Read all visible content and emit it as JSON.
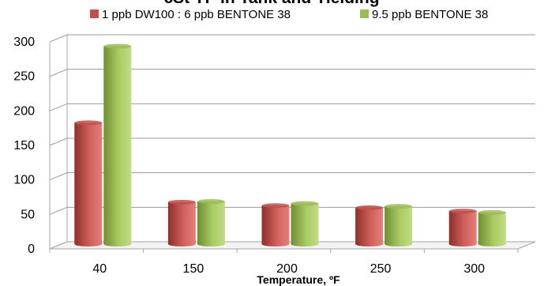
{
  "chart_data": {
    "type": "bar",
    "title": "cSt YP in Tank and Yielding",
    "xlabel": "Temperature, ºF",
    "ylabel": "",
    "categories": [
      "40",
      "150",
      "200",
      "250",
      "300"
    ],
    "series": [
      {
        "name": "1 ppb DW100 : 6 ppb BENTONE 38",
        "values": [
          177,
          62,
          57,
          54,
          49
        ]
      },
      {
        "name": "9.5 ppb BENTONE 38",
        "values": [
          288,
          63,
          60,
          56,
          47
        ]
      }
    ],
    "ylim": [
      0,
      300
    ],
    "yticks": [
      0,
      50,
      100,
      150,
      200,
      250,
      300
    ],
    "grid": true,
    "legend_position": "top",
    "colors": {
      "series_0": "#c0504d",
      "series_1": "#9bbb59",
      "gridline": "#9a9a9a",
      "axis": "#a6a6a6"
    }
  }
}
